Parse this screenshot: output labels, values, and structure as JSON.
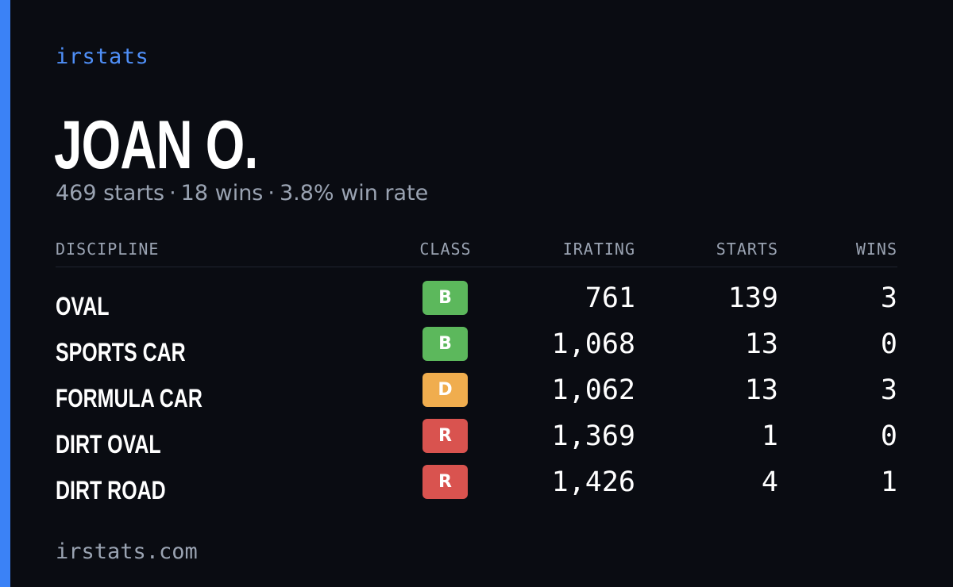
{
  "brand": "irstats",
  "player": {
    "name": "JOAN O.",
    "starts": "469 starts",
    "wins": "18 wins",
    "win_rate": "3.8% win rate",
    "separator": "·"
  },
  "table": {
    "headers": {
      "discipline": "DISCIPLINE",
      "class": "CLASS",
      "irating": "IRATING",
      "starts": "STARTS",
      "wins": "WINS"
    },
    "rows": [
      {
        "discipline": "OVAL",
        "class": "B",
        "class_color": "#5cb85c",
        "irating": "761",
        "starts": "139",
        "wins": "3"
      },
      {
        "discipline": "SPORTS CAR",
        "class": "B",
        "class_color": "#5cb85c",
        "irating": "1,068",
        "starts": "13",
        "wins": "0"
      },
      {
        "discipline": "FORMULA CAR",
        "class": "D",
        "class_color": "#f0ad4e",
        "irating": "1,062",
        "starts": "13",
        "wins": "3"
      },
      {
        "discipline": "DIRT OVAL",
        "class": "R",
        "class_color": "#d9534f",
        "irating": "1,369",
        "starts": "1",
        "wins": "0"
      },
      {
        "discipline": "DIRT ROAD",
        "class": "R",
        "class_color": "#d9534f",
        "irating": "1,426",
        "starts": "4",
        "wins": "1"
      }
    ]
  },
  "footer": "irstats.com",
  "colors": {
    "accent": "#3b82f6",
    "background": "#0a0c12",
    "muted_text": "#9aa3b2"
  }
}
